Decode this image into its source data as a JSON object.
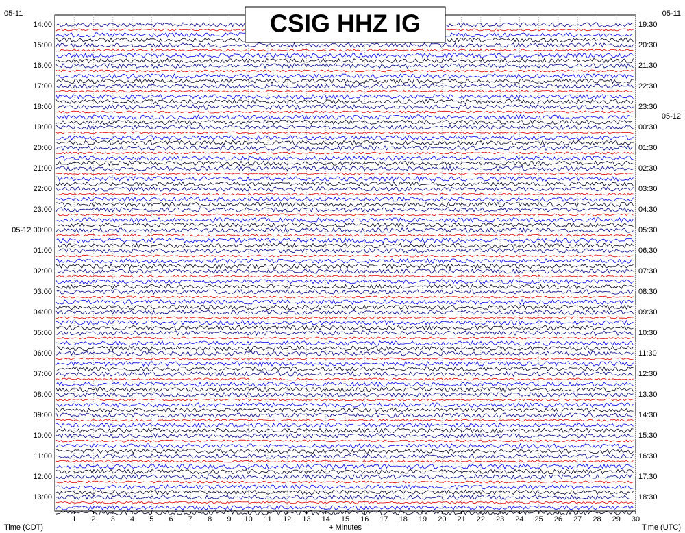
{
  "chart_data": {
    "type": "helicorder",
    "title": "CSIG HHZ IG",
    "xlabel": "+ Minutes",
    "left_axis_label": "Time (CDT)",
    "right_axis_label": "Time (UTC)",
    "left_date_label": "05-11",
    "right_date_labels": [
      "05-11",
      "05-12"
    ],
    "left_labels": [
      "14:00",
      "15:00",
      "16:00",
      "17:00",
      "18:00",
      "19:00",
      "20:00",
      "21:00",
      "22:00",
      "23:00",
      "05-12 00:00",
      "01:00",
      "02:00",
      "03:00",
      "04:00",
      "05:00",
      "06:00",
      "07:00",
      "08:00",
      "09:00",
      "10:00",
      "11:00",
      "12:00",
      "13:00"
    ],
    "right_labels": [
      "19:30",
      "20:30",
      "21:30",
      "22:30",
      "23:30",
      "00:30",
      "01:30",
      "02:30",
      "03:30",
      "04:30",
      "05:30",
      "06:30",
      "07:30",
      "08:30",
      "09:30",
      "10:30",
      "11:30",
      "12:30",
      "13:30",
      "14:30",
      "15:30",
      "16:30",
      "17:30",
      "18:30"
    ],
    "xlim": [
      0,
      30
    ],
    "xticks": [
      1,
      2,
      3,
      4,
      5,
      6,
      7,
      8,
      9,
      10,
      11,
      12,
      13,
      14,
      15,
      16,
      17,
      18,
      19,
      20,
      21,
      22,
      23,
      24,
      25,
      26,
      27,
      28,
      29,
      30
    ],
    "grid": true
  }
}
